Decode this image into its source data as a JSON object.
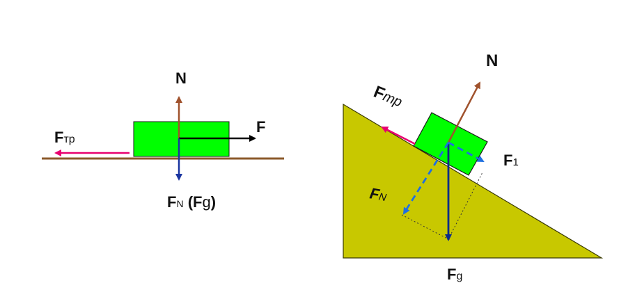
{
  "left": {
    "normal_label": "N",
    "force_label": "F",
    "friction_label": {
      "main": "F",
      "sub": "тр"
    },
    "weight_label": {
      "main": "F",
      "sub": "N",
      "paren_open": " (",
      "main2": "F",
      "sub2": "g",
      "paren_close": ")"
    }
  },
  "right": {
    "normal_label": "N",
    "friction_label": {
      "main": "F",
      "sub": "тр"
    },
    "f1_label": {
      "main": "F",
      "sub": "1"
    },
    "fn_label": {
      "main": "F",
      "sub": "N"
    },
    "fg_label": {
      "main": "F",
      "sub": "g"
    }
  },
  "colors": {
    "ground": "#8b5a2b",
    "block": "#00ff00",
    "incline": "#c8c800",
    "normal_arrow": "#a0522d",
    "friction_arrow": "#e8006f",
    "weight_arrow": "#0a2a8a",
    "component_arrow": "#1e6fe0",
    "force_arrow": "#000000",
    "weight_left_arrow": "#1a35a0"
  }
}
